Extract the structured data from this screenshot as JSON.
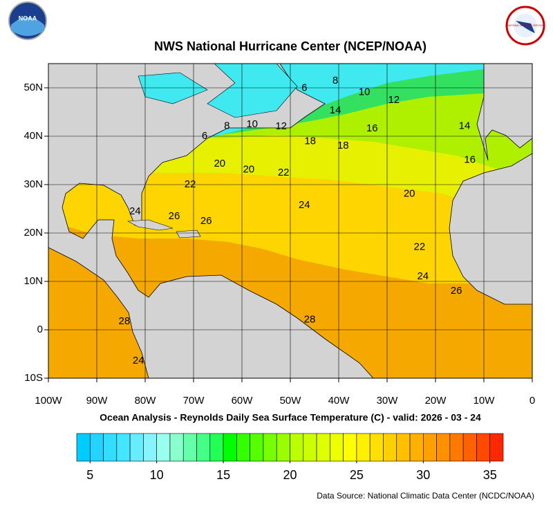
{
  "map": {
    "title": "NWS National Hurricane Center (NCEP/NOAA)",
    "subtitle": "Ocean Analysis - Reynolds Daily Sea Surface Temperature (C) - valid: 2026 - 03 - 24",
    "source": "Data Source: National Climatic Data Center (NCDC/NOAA)",
    "logos": {
      "left": "NOAA",
      "right": "NATIONAL WEATHER SERVICE"
    },
    "xlim": [
      -100,
      0
    ],
    "ylim": [
      -10,
      55
    ],
    "xticks": [
      {
        "value": -100,
        "label": "100W"
      },
      {
        "value": -90,
        "label": "90W"
      },
      {
        "value": -80,
        "label": "80W"
      },
      {
        "value": -70,
        "label": "70W"
      },
      {
        "value": -60,
        "label": "60W"
      },
      {
        "value": -50,
        "label": "50W"
      },
      {
        "value": -40,
        "label": "40W"
      },
      {
        "value": -30,
        "label": "30W"
      },
      {
        "value": -20,
        "label": "20W"
      },
      {
        "value": -10,
        "label": "10W"
      },
      0
    ],
    "yticks": [
      {
        "value": 50,
        "label": "50N"
      },
      {
        "value": 40,
        "label": "40N"
      },
      {
        "value": 30,
        "label": "30N"
      },
      {
        "value": 20,
        "label": "20N"
      },
      {
        "value": 10,
        "label": "10N"
      },
      0,
      {
        "value": -10,
        "label": "10S"
      }
    ],
    "contour_labels": [
      {
        "label": "6",
        "lon": -47.1,
        "lat": 49.9
      },
      {
        "label": "8",
        "lon": -40.7,
        "lat": 51.4
      },
      {
        "label": "10",
        "lon": -34.7,
        "lat": 49.1
      },
      {
        "label": "12",
        "lon": -28.6,
        "lat": 47.4
      },
      {
        "label": "14",
        "lon": -40.7,
        "lat": 45.3
      },
      {
        "label": "16",
        "lon": -33.1,
        "lat": 41.6
      },
      {
        "label": "14",
        "lon": -14,
        "lat": 42.1
      },
      {
        "label": "16",
        "lon": -12.9,
        "lat": 35.1
      },
      {
        "label": "6",
        "lon": -67.7,
        "lat": 40
      },
      {
        "label": "8",
        "lon": -63.1,
        "lat": 42.1
      },
      {
        "label": "10",
        "lon": -57.9,
        "lat": 42.4
      },
      {
        "label": "12",
        "lon": -51.9,
        "lat": 42
      },
      {
        "label": "18",
        "lon": -45.9,
        "lat": 38.9
      },
      {
        "label": "18",
        "lon": -39.1,
        "lat": 38
      },
      {
        "label": "20",
        "lon": -64.6,
        "lat": 34.3
      },
      {
        "label": "20",
        "lon": -58.6,
        "lat": 33.1
      },
      {
        "label": "22",
        "lon": -51.4,
        "lat": 32.4
      },
      {
        "label": "22",
        "lon": -70.7,
        "lat": 30
      },
      {
        "label": "20",
        "lon": -25.4,
        "lat": 28.1
      },
      {
        "label": "24",
        "lon": -47.1,
        "lat": 25.7
      },
      {
        "label": "24",
        "lon": -82.1,
        "lat": 24.4
      },
      {
        "label": "26",
        "lon": -74,
        "lat": 23.4
      },
      {
        "label": "26",
        "lon": -67.4,
        "lat": 22.4
      },
      {
        "label": "22",
        "lon": -23.3,
        "lat": 17.1
      },
      {
        "label": "24",
        "lon": -22.6,
        "lat": 11
      },
      {
        "label": "26",
        "lon": -15.7,
        "lat": 8
      },
      {
        "label": "28",
        "lon": -84.3,
        "lat": 1.7
      },
      {
        "label": "28",
        "lon": -46,
        "lat": 2.1
      },
      {
        "label": "24",
        "lon": -81.4,
        "lat": -6.4
      }
    ],
    "colorbar": {
      "range": [
        4,
        36
      ],
      "ticks": [
        5,
        10,
        15,
        20,
        25,
        30,
        35
      ],
      "colors": [
        "#00ccff",
        "#22d4ff",
        "#33ddff",
        "#44e6ff",
        "#66eeff",
        "#88f4ff",
        "#99ffee",
        "#88ffcc",
        "#66ffaa",
        "#44ff88",
        "#22ff55",
        "#00ff00",
        "#33ff00",
        "#55ff00",
        "#77ff00",
        "#99ff00",
        "#bbff00",
        "#ccff00",
        "#ddff00",
        "#eeff00",
        "#ffff00",
        "#fff000",
        "#ffe000",
        "#ffd000",
        "#ffc000",
        "#ffb000",
        "#ffa000",
        "#ff9000",
        "#ff7800",
        "#ff6000",
        "#ff4800",
        "#ff2800"
      ]
    }
  }
}
